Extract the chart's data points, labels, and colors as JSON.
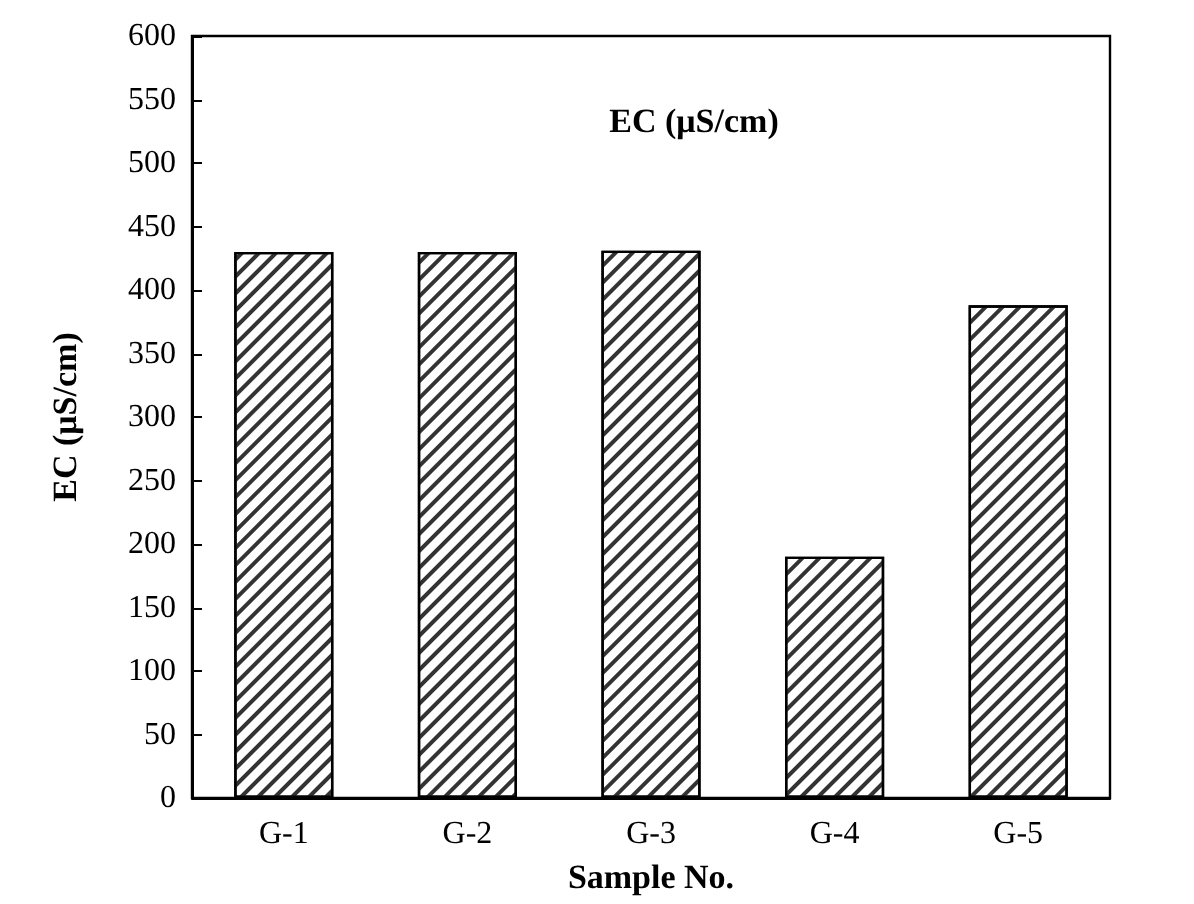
{
  "chart_data": {
    "type": "bar",
    "title": "EC (μS/cm)",
    "xlabel": "Sample No.",
    "ylabel": "EC (μS/cm)",
    "categories": [
      "G-1",
      "G-2",
      "G-3",
      "G-4",
      "G-5"
    ],
    "values": [
      430,
      430,
      431,
      190,
      388
    ],
    "color": "#ffffff",
    "ylim": [
      0,
      600
    ],
    "yticks": [
      0,
      50,
      100,
      150,
      200,
      250,
      300,
      350,
      400,
      450,
      500,
      550,
      600
    ],
    "grid": false
  }
}
